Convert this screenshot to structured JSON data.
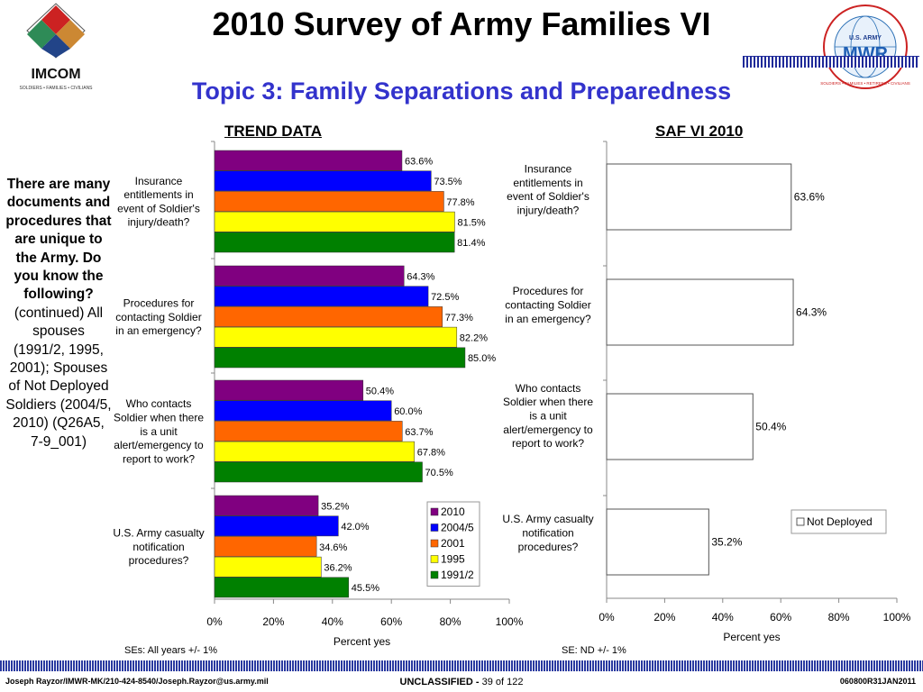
{
  "title": "2010 Survey of Army Families VI",
  "subtitle": "Topic 3: Family Separations and Preparedness",
  "logo_left": {
    "name": "IMCOM",
    "tagline": "SOLDIERS • FAMILIES • CIVILIANS"
  },
  "logo_right": {
    "top_text": "U.S. ARMY",
    "name": "MWR",
    "ring_text": "SOLDIERS • FAMILIES • RETIREES • CIVILIANS"
  },
  "side_text": {
    "bold": "There are many documents and procedures that are unique to the Army. Do you know the following?",
    "normal": "(continued) All spouses (1991/2, 1995, 2001); Spouses of Not Deployed Soldiers (2004/5, 2010) (Q26A5, 7-9_001)"
  },
  "se_left": "SEs: All years +/- 1%",
  "se_right": "SE: ND +/- 1%",
  "footer": {
    "left": "Joseph Rayzor/IMWR-MK/210-424-8540/Joseph.Rayzor@us.army.mil",
    "classification": "UNCLASSIFIED -",
    "page": "39 of 122",
    "right": "060800R31JAN2011"
  },
  "colors": {
    "accent_blue": "#3333cc",
    "dark_navy": "#1f2a99"
  },
  "chart_data": [
    {
      "type": "bar",
      "orientation": "horizontal",
      "title": "TREND DATA",
      "xlabel": "Percent yes",
      "xlim": [
        0,
        100
      ],
      "xticks": [
        "0%",
        "20%",
        "40%",
        "60%",
        "80%",
        "100%"
      ],
      "categories": [
        "Insurance entitlements in event of Soldier's injury/death?",
        "Procedures for contacting Soldier in an emergency?",
        "Who contacts Soldier when there is a unit alert/emergency to report to work?",
        "U.S. Army casualty notification procedures?"
      ],
      "category_lines": [
        [
          "Insurance",
          "entitlements in",
          "event of Soldier's",
          "injury/death?"
        ],
        [
          "Procedures for",
          "contacting Soldier",
          "in an emergency?"
        ],
        [
          "Who contacts",
          "Soldier when there",
          "is a unit",
          "alert/emergency to",
          "report to work?"
        ],
        [
          "U.S. Army casualty",
          "notification",
          "procedures?"
        ]
      ],
      "series": [
        {
          "name": "2010",
          "color": "#800080",
          "values": [
            63.6,
            64.3,
            50.4,
            35.2
          ]
        },
        {
          "name": "2004/5",
          "color": "#0000ff",
          "values": [
            73.5,
            72.5,
            60.0,
            42.0
          ]
        },
        {
          "name": "2001",
          "color": "#ff6600",
          "values": [
            77.8,
            77.3,
            63.7,
            34.6
          ]
        },
        {
          "name": "1995",
          "color": "#ffff00",
          "values": [
            81.5,
            82.2,
            67.8,
            36.2
          ]
        },
        {
          "name": "1991/2",
          "color": "#008000",
          "values": [
            81.4,
            85.0,
            70.5,
            45.5
          ]
        }
      ],
      "legend_position": "bottom-right"
    },
    {
      "type": "bar",
      "orientation": "horizontal",
      "title": "SAF VI 2010",
      "xlabel": "Percent yes",
      "xlim": [
        0,
        100
      ],
      "xticks": [
        "0%",
        "20%",
        "40%",
        "60%",
        "80%",
        "100%"
      ],
      "categories": [
        "Insurance entitlements in event of Soldier's injury/death?",
        "Procedures for contacting Soldier in an emergency?",
        "Who contacts Soldier when there is a unit alert/emergency to report to work?",
        "U.S. Army casualty notification procedures?"
      ],
      "category_lines": [
        [
          "Insurance",
          "entitlements in",
          "event of Soldier's",
          "injury/death?"
        ],
        [
          "Procedures for",
          "contacting Soldier",
          "in an emergency?"
        ],
        [
          "Who contacts",
          "Soldier when there",
          "is a unit",
          "alert/emergency to",
          "report to work?"
        ],
        [
          "U.S. Army casualty",
          "notification",
          "procedures?"
        ]
      ],
      "series": [
        {
          "name": "Not Deployed",
          "color": "#ffffff",
          "values": [
            63.6,
            64.3,
            50.4,
            35.2
          ]
        }
      ],
      "legend_position": "bottom-right"
    }
  ]
}
